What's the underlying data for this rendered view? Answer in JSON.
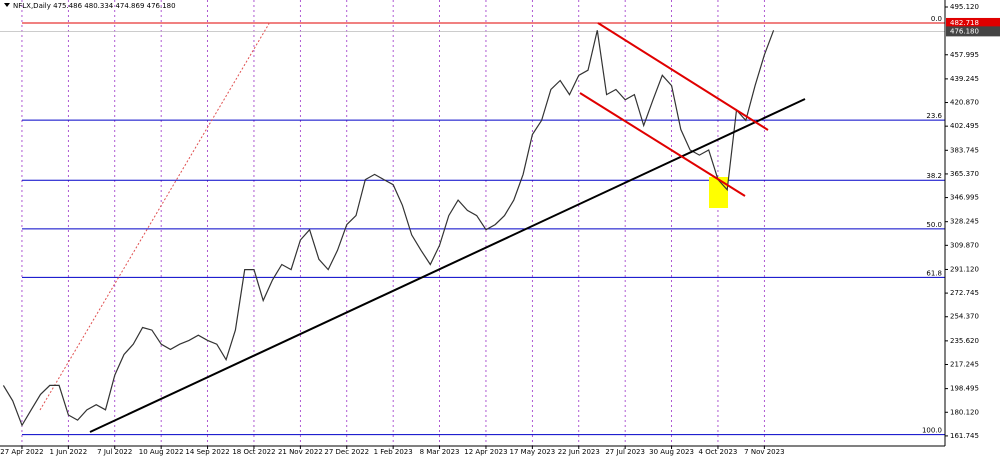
{
  "chart_data": {
    "type": "line",
    "title": "NFLX,Daily 475.486 480.334 474.869 476.180",
    "categories": [
      null,
      null,
      "27 Apr 2022",
      null,
      null,
      null,
      null,
      "1 Jun 2022",
      null,
      null,
      null,
      null,
      "7 Jul 2022",
      null,
      null,
      null,
      null,
      "10 Aug 2022",
      null,
      null,
      null,
      null,
      "14 Sep 2022",
      null,
      null,
      null,
      null,
      "18 Oct 2022",
      null,
      null,
      null,
      null,
      "21 Nov 2022",
      null,
      null,
      null,
      null,
      "27 Dec 2022",
      null,
      null,
      null,
      null,
      "1 Feb 2023",
      null,
      null,
      null,
      null,
      "8 Mar 2023",
      null,
      null,
      null,
      null,
      "12 Apr 2023",
      null,
      null,
      null,
      null,
      "17 May 2023",
      null,
      null,
      null,
      null,
      "22 Jun 2023",
      null,
      null,
      null,
      null,
      "27 Jul 2023",
      null,
      null,
      null,
      null,
      "30 Aug 2023",
      null,
      null,
      null,
      null,
      "4 Oct 2023",
      null,
      null,
      null,
      null,
      "7 Nov 2023",
      null
    ],
    "series": [
      {
        "color": "#333333",
        "values": [
          201,
          189,
          170,
          182,
          194,
          201,
          201,
          178,
          174,
          182,
          186,
          182,
          209,
          225,
          233,
          246,
          244,
          233,
          229,
          233,
          236,
          240,
          236,
          233,
          221,
          244,
          291,
          291,
          267,
          283,
          295,
          291,
          314,
          322,
          299,
          291,
          306,
          326,
          333,
          361,
          365,
          361,
          357,
          341,
          318,
          306,
          295,
          310,
          333,
          345,
          337,
          333,
          322,
          326,
          333,
          345,
          365,
          396,
          407,
          431,
          438,
          427,
          442,
          446,
          477,
          427,
          431,
          423,
          427,
          403,
          423,
          442,
          434,
          400,
          384,
          380,
          384,
          361,
          353,
          415,
          407,
          434,
          458,
          477
        ]
      }
    ],
    "ylim": [
      153.9,
      500.56
    ],
    "yticks": [
      {
        "value": 495.12,
        "label": "495.120"
      },
      {
        "value": 457.995,
        "label": "457.995"
      },
      {
        "value": 439.245,
        "label": "439.245"
      },
      {
        "value": 420.87,
        "label": "420.870"
      },
      {
        "value": 402.495,
        "label": "402.495"
      },
      {
        "value": 383.745,
        "label": "383.745"
      },
      {
        "value": 365.37,
        "label": "365.370"
      },
      {
        "value": 346.995,
        "label": "346.995"
      },
      {
        "value": 328.245,
        "label": "328.245"
      },
      {
        "value": 309.87,
        "label": "309.870"
      },
      {
        "value": 291.12,
        "label": "291.120"
      },
      {
        "value": 272.745,
        "label": "272.745"
      },
      {
        "value": 254.37,
        "label": "254.370"
      },
      {
        "value": 235.62,
        "label": "235.620"
      },
      {
        "value": 217.245,
        "label": "217.245"
      },
      {
        "value": 198.495,
        "label": "198.495"
      },
      {
        "value": 180.12,
        "label": "180.120"
      },
      {
        "value": 161.745,
        "label": "161.745"
      }
    ],
    "price_markers": [
      {
        "value": 482.718,
        "label": "482.718",
        "color": "#e00000"
      },
      {
        "value": 476.18,
        "label": "476.180",
        "color": "#444444"
      }
    ],
    "fib_levels": [
      {
        "value": 482.718,
        "label": "0.0"
      },
      {
        "value": 407.2,
        "label": "23.6"
      },
      {
        "value": 360.5,
        "label": "38.2"
      },
      {
        "value": 322.7,
        "label": "50.0"
      },
      {
        "value": 285.0,
        "label": "61.8"
      },
      {
        "value": 162.7,
        "label": "100.0"
      }
    ]
  }
}
